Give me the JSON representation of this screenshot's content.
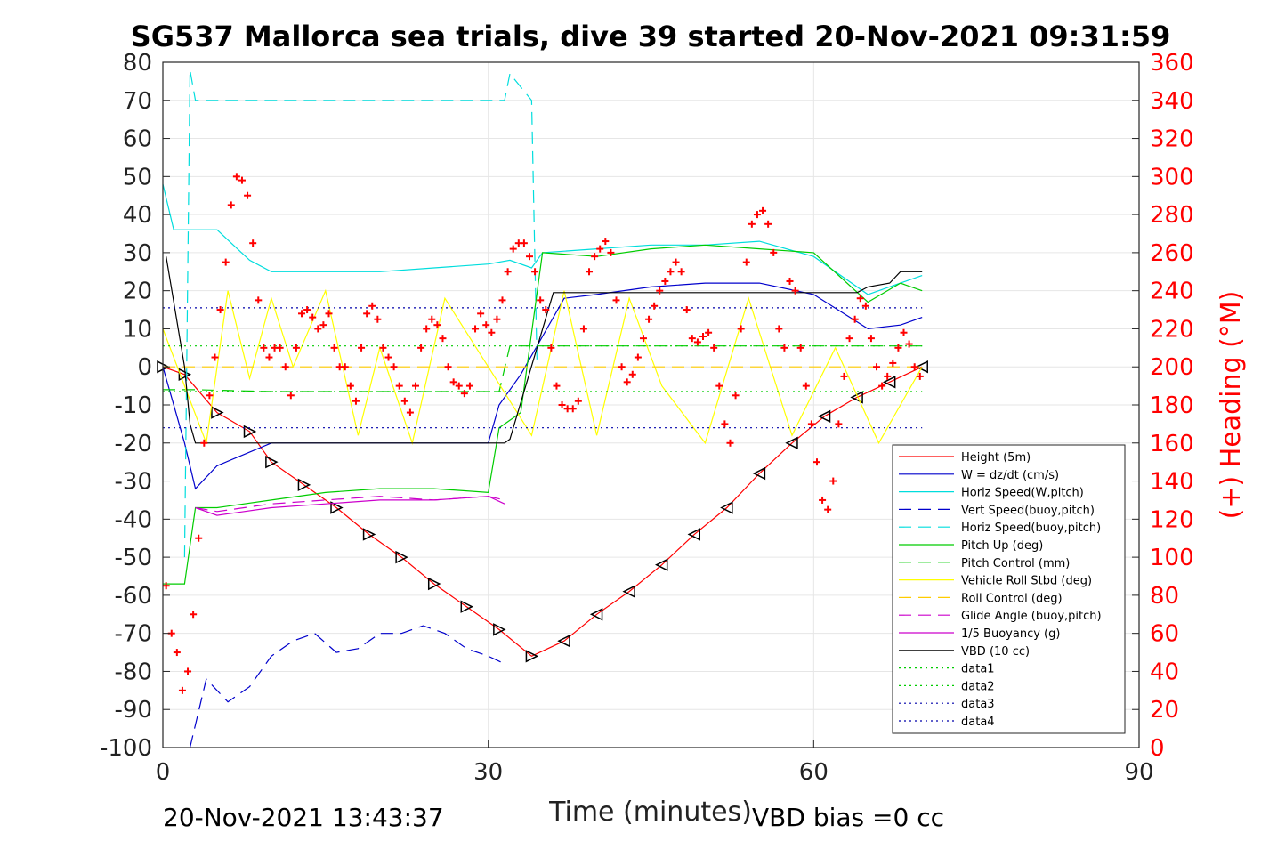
{
  "chart_data": {
    "type": "line",
    "title": "SG537 Mallorca sea trials, dive 39 started 20-Nov-2021 09:31:59",
    "xlabel": "Time (minutes)",
    "ylabel_right": "(+) Heading (°M)",
    "xlim": [
      0,
      90
    ],
    "ylim_left": [
      -100,
      80
    ],
    "ylim_right": [
      0,
      360
    ],
    "x_ticks": [
      0,
      30,
      60,
      90
    ],
    "y_ticks_left": [
      80,
      70,
      60,
      50,
      40,
      30,
      20,
      10,
      0,
      -10,
      -20,
      -30,
      -40,
      -50,
      -60,
      -70,
      -80,
      -90,
      -100
    ],
    "y_ticks_right": [
      360,
      340,
      320,
      300,
      280,
      260,
      240,
      220,
      200,
      180,
      160,
      140,
      120,
      100,
      80,
      60,
      40,
      20,
      0
    ],
    "grid": true,
    "legend_position": "lower-right",
    "footer_left": "20-Nov-2021 13:43:37",
    "footer_right": "VBD bias =0 cc",
    "series": [
      {
        "name": "Height (5m)",
        "color": "#ff0000",
        "style": "solid",
        "marker": "triangle",
        "x": [
          0,
          2,
          5,
          8,
          10,
          13,
          16,
          19,
          22,
          25,
          28,
          31,
          34,
          37,
          40,
          43,
          46,
          49,
          52,
          55,
          58,
          61,
          64,
          67,
          70
        ],
        "y": [
          0,
          -2,
          -12,
          -17,
          -25,
          -31,
          -37,
          -44,
          -50,
          -57,
          -63,
          -69,
          -76,
          -72,
          -65,
          -59,
          -52,
          -44,
          -37,
          -28,
          -20,
          -13,
          -8,
          -4,
          0
        ]
      },
      {
        "name": "W = dz/dt (cm/s)",
        "color": "#0000cc",
        "style": "solid",
        "x": [
          0,
          2,
          3,
          5,
          10,
          15,
          20,
          25,
          30,
          31,
          33,
          35,
          37,
          40,
          45,
          50,
          55,
          60,
          65,
          68,
          70
        ],
        "y": [
          0,
          -20,
          -32,
          -26,
          -20,
          -20,
          -20,
          -20,
          -20,
          -10,
          -2,
          8,
          18,
          19,
          21,
          22,
          22,
          19,
          10,
          11,
          13
        ]
      },
      {
        "name": "Horiz Speed(W,pitch)",
        "color": "#00dddd",
        "style": "solid",
        "x": [
          0,
          1,
          3,
          5,
          8,
          10,
          15,
          20,
          25,
          30,
          32,
          34,
          35,
          40,
          45,
          50,
          55,
          60,
          65,
          68,
          70
        ],
        "y": [
          48,
          36,
          36,
          36,
          28,
          25,
          25,
          25,
          26,
          27,
          28,
          26,
          30,
          31,
          32,
          32,
          33,
          29,
          19,
          22,
          24
        ]
      },
      {
        "name": "Vert Speed(buoy,pitch)",
        "color": "#0000cc",
        "style": "dashed",
        "x": [
          2.5,
          4,
          6,
          8,
          10,
          12,
          14,
          16,
          18,
          20,
          22,
          24,
          26,
          28,
          30,
          31.5
        ],
        "y": [
          -100,
          -82,
          -88,
          -84,
          -76,
          -72,
          -70,
          -75,
          -74,
          -70,
          -70,
          -68,
          -70,
          -74,
          -76,
          -78
        ]
      },
      {
        "name": "Horiz Speed(buoy,pitch)",
        "color": "#00dddd",
        "style": "dashed",
        "x": [
          2,
          2.5,
          3,
          31.5,
          32,
          34,
          34.5
        ],
        "y": [
          -50,
          78,
          70,
          70,
          77,
          70,
          0
        ]
      },
      {
        "name": "Pitch Up (deg)",
        "color": "#00cc00",
        "style": "solid",
        "x": [
          0,
          2,
          3,
          5,
          10,
          15,
          20,
          25,
          30,
          31,
          33,
          35,
          40,
          45,
          50,
          55,
          60,
          65,
          68,
          70
        ],
        "y": [
          -57,
          -57,
          -37,
          -37,
          -35,
          -33,
          -32,
          -32,
          -33,
          -16,
          -12,
          30,
          29,
          31,
          32,
          31,
          30,
          17,
          22,
          20
        ]
      },
      {
        "name": "Pitch Control (mm)",
        "color": "#00cc00",
        "style": "dashed",
        "x": [
          0,
          3,
          10,
          20,
          31,
          32,
          70
        ],
        "y": [
          -6,
          -6,
          -6.5,
          -6.5,
          -6.5,
          5.5,
          5.5
        ]
      },
      {
        "name": "Vehicle Roll Stbd (deg)",
        "color": "#ffff00",
        "style": "solid",
        "x": [
          0,
          2,
          4,
          6,
          8,
          10,
          12,
          15,
          18,
          20,
          23,
          26,
          30,
          34,
          37,
          40,
          43,
          46,
          50,
          54,
          58,
          62,
          66,
          70
        ],
        "y": [
          10,
          -5,
          -20,
          20,
          -3,
          18,
          0,
          20,
          -18,
          5,
          -20,
          18,
          0,
          -18,
          20,
          -18,
          18,
          -5,
          -20,
          18,
          -18,
          5,
          -20,
          0
        ]
      },
      {
        "name": "Roll Control (deg)",
        "color": "#ffcc00",
        "style": "dashed",
        "x": [
          0,
          70
        ],
        "y": [
          0,
          0
        ]
      },
      {
        "name": "Glide Angle (buoy,pitch)",
        "color": "#cc00cc",
        "style": "dashed",
        "x": [
          3,
          5,
          10,
          15,
          20,
          25,
          30,
          31.5
        ],
        "y": [
          -37,
          -38,
          -36,
          -35,
          -34,
          -35,
          -34,
          -35
        ]
      },
      {
        "name": "1/5 Buoyancy (g)",
        "color": "#cc00cc",
        "style": "solid",
        "x": [
          3,
          5,
          10,
          15,
          20,
          25,
          30,
          31.5
        ],
        "y": [
          -37,
          -39,
          -37,
          -36,
          -35,
          -35,
          -34,
          -36
        ]
      },
      {
        "name": "VBD (10 cc)",
        "color": "#000000",
        "style": "solid",
        "x": [
          0.3,
          2,
          2.5,
          3,
          31.5,
          32,
          36,
          64,
          65,
          67,
          68,
          70
        ],
        "y": [
          29,
          0,
          -15,
          -20,
          -20,
          -19,
          19.5,
          19.5,
          21,
          22,
          25,
          25
        ]
      },
      {
        "name": "data1",
        "color": "#00cc00",
        "style": "dotted",
        "x": [
          0,
          70
        ],
        "y": [
          5.5,
          5.5
        ]
      },
      {
        "name": "data2",
        "color": "#00cc00",
        "style": "dotted",
        "x": [
          0,
          70
        ],
        "y": [
          -6.5,
          -6.5
        ]
      },
      {
        "name": "data3",
        "color": "#0000aa",
        "style": "dotted",
        "x": [
          0,
          70
        ],
        "y": [
          15.5,
          15.5
        ]
      },
      {
        "name": "data4",
        "color": "#0000aa",
        "style": "dotted",
        "x": [
          0,
          70
        ],
        "y": [
          -16,
          -16
        ]
      }
    ],
    "heading_series": {
      "name": "Heading",
      "axis": "right",
      "color": "#ff0000",
      "marker": "plus",
      "x": [
        0.3,
        0.8,
        1.3,
        1.8,
        2.3,
        2.8,
        3.3,
        3.8,
        4.3,
        4.8,
        5.3,
        5.8,
        6.3,
        6.8,
        7.3,
        7.8,
        8.3,
        8.8,
        9.3,
        9.8,
        10.3,
        10.8,
        11.3,
        11.8,
        12.3,
        12.8,
        13.3,
        13.8,
        14.3,
        14.8,
        15.3,
        15.8,
        16.3,
        16.8,
        17.3,
        17.8,
        18.3,
        18.8,
        19.3,
        19.8,
        20.3,
        20.8,
        21.3,
        21.8,
        22.3,
        22.8,
        23.3,
        23.8,
        24.3,
        24.8,
        25.3,
        25.8,
        26.3,
        26.8,
        27.3,
        27.8,
        28.3,
        28.8,
        29.3,
        29.8,
        30.3,
        30.8,
        31.3,
        31.8,
        32.3,
        32.8,
        33.3,
        33.8,
        34.3,
        34.8,
        35.3,
        35.8,
        36.3,
        36.8,
        37.3,
        37.8,
        38.3,
        38.8,
        39.3,
        39.8,
        40.3,
        40.8,
        41.3,
        41.8,
        42.3,
        42.8,
        43.3,
        43.8,
        44.3,
        44.8,
        45.3,
        45.8,
        46.3,
        46.8,
        47.3,
        47.8,
        48.3,
        48.8,
        49.3,
        49.8,
        50.3,
        50.8,
        51.3,
        51.8,
        52.3,
        52.8,
        53.3,
        53.8,
        54.3,
        54.8,
        55.3,
        55.8,
        56.3,
        56.8,
        57.3,
        57.8,
        58.3,
        58.8,
        59.3,
        59.8,
        60.3,
        60.8,
        61.3,
        61.8,
        62.3,
        62.8,
        63.3,
        63.8,
        64.3,
        64.8,
        65.3,
        65.8,
        66.3,
        66.8,
        67.3,
        67.8,
        68.3,
        68.8,
        69.3,
        69.8
      ],
      "y": [
        85,
        60,
        50,
        30,
        40,
        70,
        110,
        160,
        185,
        205,
        230,
        255,
        285,
        300,
        298,
        290,
        265,
        235,
        210,
        205,
        210,
        210,
        200,
        185,
        210,
        228,
        230,
        226,
        220,
        222,
        228,
        210,
        200,
        200,
        190,
        182,
        210,
        228,
        232,
        225,
        210,
        205,
        200,
        190,
        182,
        176,
        190,
        210,
        220,
        225,
        222,
        215,
        200,
        192,
        190,
        186,
        190,
        220,
        228,
        222,
        218,
        225,
        235,
        250,
        262,
        265,
        265,
        258,
        250,
        235,
        230,
        210,
        190,
        180,
        178,
        178,
        182,
        220,
        250,
        258,
        262,
        266,
        260,
        235,
        200,
        192,
        196,
        205,
        215,
        225,
        232,
        240,
        245,
        250,
        255,
        250,
        230,
        215,
        213,
        216,
        218,
        210,
        190,
        170,
        160,
        185,
        220,
        255,
        275,
        280,
        282,
        275,
        260,
        220,
        210,
        245,
        240,
        210,
        190,
        170,
        150,
        130,
        125,
        140,
        170,
        195,
        215,
        225,
        236,
        232,
        215,
        200,
        190,
        195,
        202,
        210,
        218,
        212,
        200,
        195
      ]
    }
  }
}
